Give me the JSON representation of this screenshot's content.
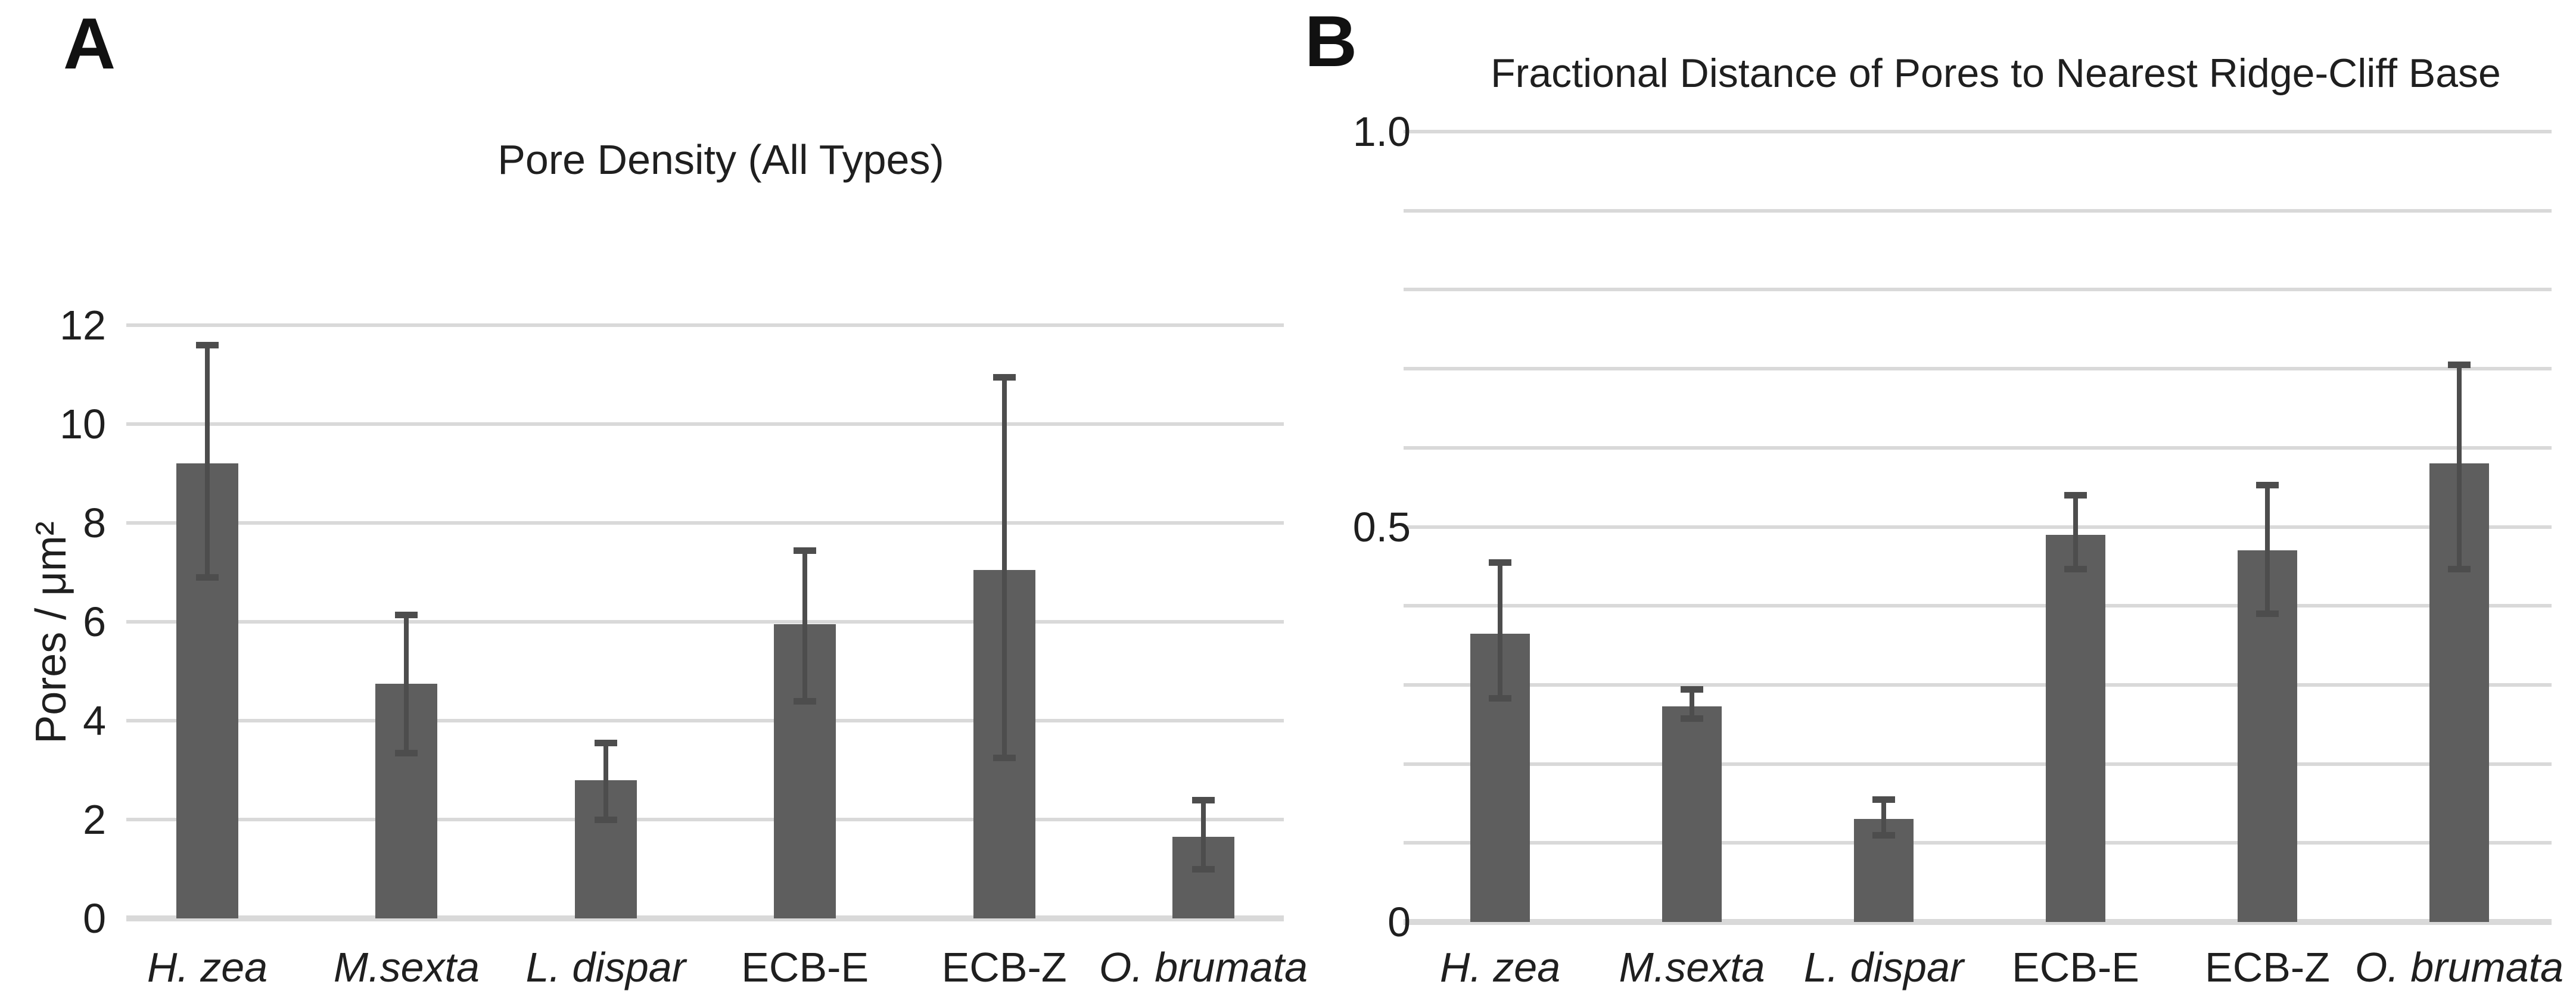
{
  "figure": {
    "background_color": "#ffffff",
    "bar_color": "#5e5e5e",
    "error_bar_color": "#4d4d4d",
    "gridline_color": "#d9d9d9",
    "text_color": "#1f1f1f"
  },
  "chart_data": [
    {
      "type": "bar",
      "panel_label": "A",
      "title": "Pore Density (All Types)",
      "ylabel": "Pores / μm²",
      "xlabel": "",
      "categories": [
        "H. zea",
        "M.sexta",
        "L. dispar",
        "ECB-E",
        "ECB-Z",
        "O. brumata"
      ],
      "categories_italic": [
        true,
        true,
        true,
        false,
        false,
        true
      ],
      "values": [
        9.2,
        4.75,
        2.8,
        5.95,
        7.05,
        1.65
      ],
      "error_low": [
        6.9,
        3.35,
        2.0,
        4.4,
        3.25,
        1.0
      ],
      "error_high": [
        11.6,
        6.15,
        3.55,
        7.45,
        10.95,
        2.4
      ],
      "ylim": [
        0,
        12
      ],
      "grid_step": 2,
      "yticks": [
        {
          "value": 0,
          "label": "0"
        },
        {
          "value": 2,
          "label": "2"
        },
        {
          "value": 4,
          "label": "4"
        },
        {
          "value": 6,
          "label": "6"
        },
        {
          "value": 8,
          "label": "8"
        },
        {
          "value": 10,
          "label": "10"
        },
        {
          "value": 12,
          "label": "12"
        }
      ],
      "legend": "none",
      "grid": "horizontal"
    },
    {
      "type": "bar",
      "panel_label": "B",
      "title": "Fractional Distance of Pores to Nearest Ridge-Cliff Base",
      "ylabel": "",
      "xlabel": "",
      "categories": [
        "H. zea",
        "M.sexta",
        "L. dispar",
        "ECB-E",
        "ECB-Z",
        "O. brumata"
      ],
      "categories_italic": [
        true,
        true,
        true,
        false,
        false,
        true
      ],
      "values": [
        0.365,
        0.273,
        0.13,
        0.49,
        0.47,
        0.58
      ],
      "error_low": [
        0.283,
        0.258,
        0.11,
        0.447,
        0.39,
        0.447
      ],
      "error_high": [
        0.455,
        0.295,
        0.155,
        0.54,
        0.553,
        0.705
      ],
      "ylim": [
        0,
        1.0
      ],
      "grid_step": 0.1,
      "yticks": [
        {
          "value": 0,
          "label": "0"
        },
        {
          "value": 0.5,
          "label": "0.5"
        },
        {
          "value": 1.0,
          "label": "1.0"
        }
      ],
      "legend": "none",
      "grid": "horizontal"
    }
  ]
}
